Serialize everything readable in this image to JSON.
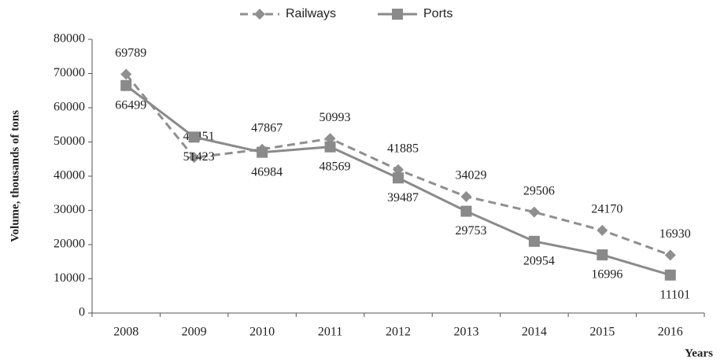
{
  "chart_data": {
    "type": "line",
    "categories": [
      "2008",
      "2009",
      "2010",
      "2011",
      "2012",
      "2013",
      "2014",
      "2015",
      "2016"
    ],
    "series": [
      {
        "name": "Railways",
        "color": "#8f8f8f",
        "dashed": true,
        "marker": "diamond",
        "values": [
          69789,
          45451,
          47867,
          50993,
          41885,
          34029,
          29506,
          24170,
          16930
        ]
      },
      {
        "name": "Ports",
        "color": "#8a8a8a",
        "dashed": false,
        "marker": "square",
        "values": [
          66499,
          51423,
          46984,
          48569,
          39487,
          29753,
          20954,
          16996,
          11101
        ]
      }
    ],
    "x_label": "Years",
    "y_label": "Volume, thousands of tons",
    "ylim": [
      0,
      80000
    ],
    "yticks": [
      0,
      10000,
      20000,
      30000,
      40000,
      50000,
      60000,
      70000,
      80000
    ],
    "legend": "top",
    "grid": false
  }
}
